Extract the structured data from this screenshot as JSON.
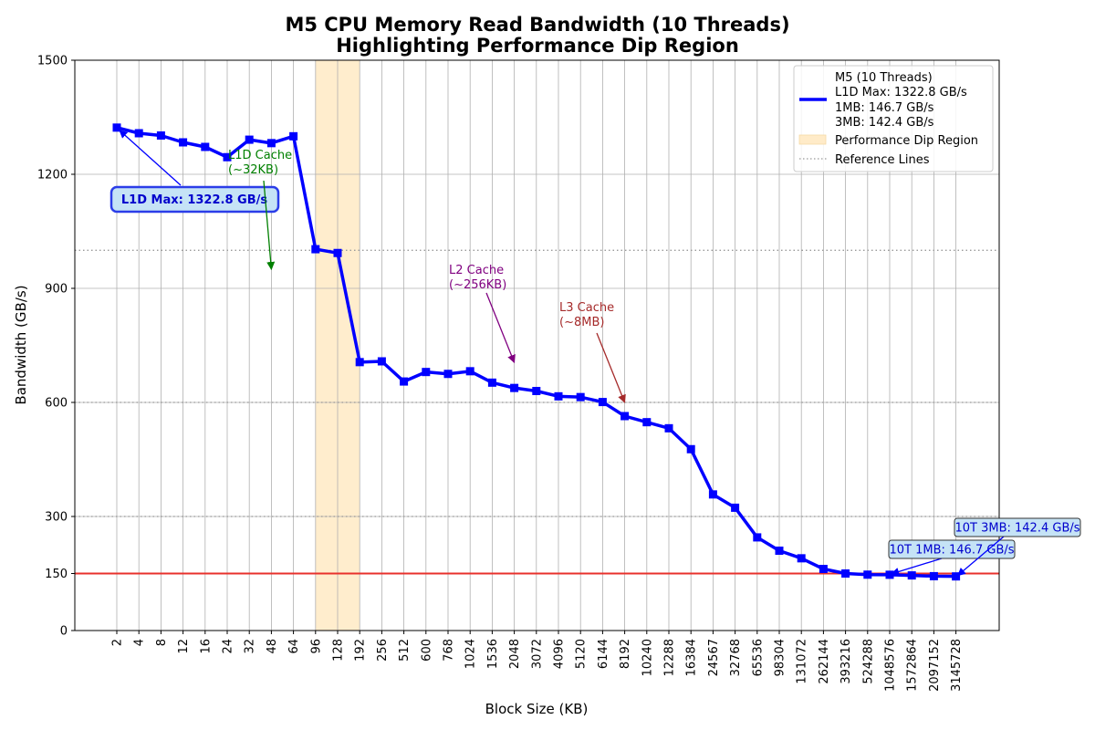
{
  "chart_data": {
    "type": "line",
    "title": "M5 CPU Memory Read Bandwidth (10 Threads)",
    "subtitle": "Highlighting Performance Dip Region",
    "xlabel": "Block Size (KB)",
    "ylabel": "Bandwidth (GB/s)",
    "ylim": [
      0,
      1500
    ],
    "yticks": [
      0,
      150,
      300,
      600,
      900,
      1200,
      1500
    ],
    "grid": true,
    "categories": [
      "2",
      "4",
      "8",
      "12",
      "16",
      "24",
      "32",
      "48",
      "64",
      "96",
      "128",
      "192",
      "256",
      "512",
      "600",
      "768",
      "1024",
      "1536",
      "2048",
      "3072",
      "4096",
      "5120",
      "6144",
      "8192",
      "10240",
      "12288",
      "16384",
      "24567",
      "32768",
      "65536",
      "98304",
      "131072",
      "262144",
      "393216",
      "524288",
      "1048576",
      "1572864",
      "2097152",
      "3145728"
    ],
    "series": [
      {
        "name": "M5 (10 Threads)",
        "color": "#0000ff",
        "values": [
          1322.8,
          1308,
          1302,
          1284,
          1272,
          1245,
          1291,
          1282,
          1300,
          1003,
          993,
          706,
          708,
          655,
          680,
          675,
          682,
          652,
          638,
          630,
          616,
          614,
          601,
          564,
          548,
          532,
          477,
          358,
          323,
          245,
          210,
          190,
          162,
          150,
          147,
          146.7,
          145,
          143,
          142.4
        ]
      }
    ],
    "legend": {
      "position": "top-right",
      "series_label": "M5 (10 Threads)",
      "series_details": [
        "L1D Max: 1322.8 GB/s",
        "1MB: 146.7 GB/s",
        "3MB: 142.4 GB/s"
      ],
      "dip_label": "Performance Dip Region",
      "ref_label": "Reference Lines"
    },
    "dip_region": {
      "from_category": "96",
      "to_category": "192",
      "color": "#ffebc8"
    },
    "reference_lines": [
      {
        "value": 1000,
        "style": "dotted",
        "color": "#999999"
      },
      {
        "value": 600,
        "style": "dotted",
        "color": "#999999"
      },
      {
        "value": 300,
        "style": "dotted",
        "color": "#999999"
      },
      {
        "value": 150,
        "style": "solid",
        "color": "#e8312c"
      }
    ],
    "annotations": [
      {
        "id": "l1d-max",
        "text": "L1D Max: 1322.8 GB/s",
        "target_category": "2",
        "target_value": 1322.8,
        "text_color": "#0000cc",
        "bold": true,
        "boxed": true,
        "arrow_color": "#0000ff"
      },
      {
        "id": "l1d-cache",
        "lines": [
          "L1D Cache",
          "(~32KB)"
        ],
        "target_category": "48",
        "target_value": 950,
        "text_color": "#008000",
        "arrow_color": "#008000"
      },
      {
        "id": "l2-cache",
        "lines": [
          "L2 Cache",
          "(~256KB)"
        ],
        "target_category": "2048",
        "target_value": 705,
        "text_color": "#800080",
        "arrow_color": "#800080"
      },
      {
        "id": "l3-cache",
        "lines": [
          "L3 Cache",
          "(~8MB)"
        ],
        "target_category": "8192",
        "target_value": 600,
        "text_color": "#a52a2a",
        "arrow_color": "#a52a2a"
      },
      {
        "id": "tt-1mb",
        "text": "10T 1MB: 146.7 GB/s",
        "target_category": "1048576",
        "target_value": 146.7,
        "text_color": "#0000cc",
        "boxed": true,
        "arrow_color": "#0000ff"
      },
      {
        "id": "tt-3mb",
        "text": "10T 3MB: 142.4 GB/s",
        "target_category": "3145728",
        "target_value": 142.4,
        "text_color": "#0000cc",
        "boxed": true,
        "arrow_color": "#0000ff"
      }
    ]
  }
}
